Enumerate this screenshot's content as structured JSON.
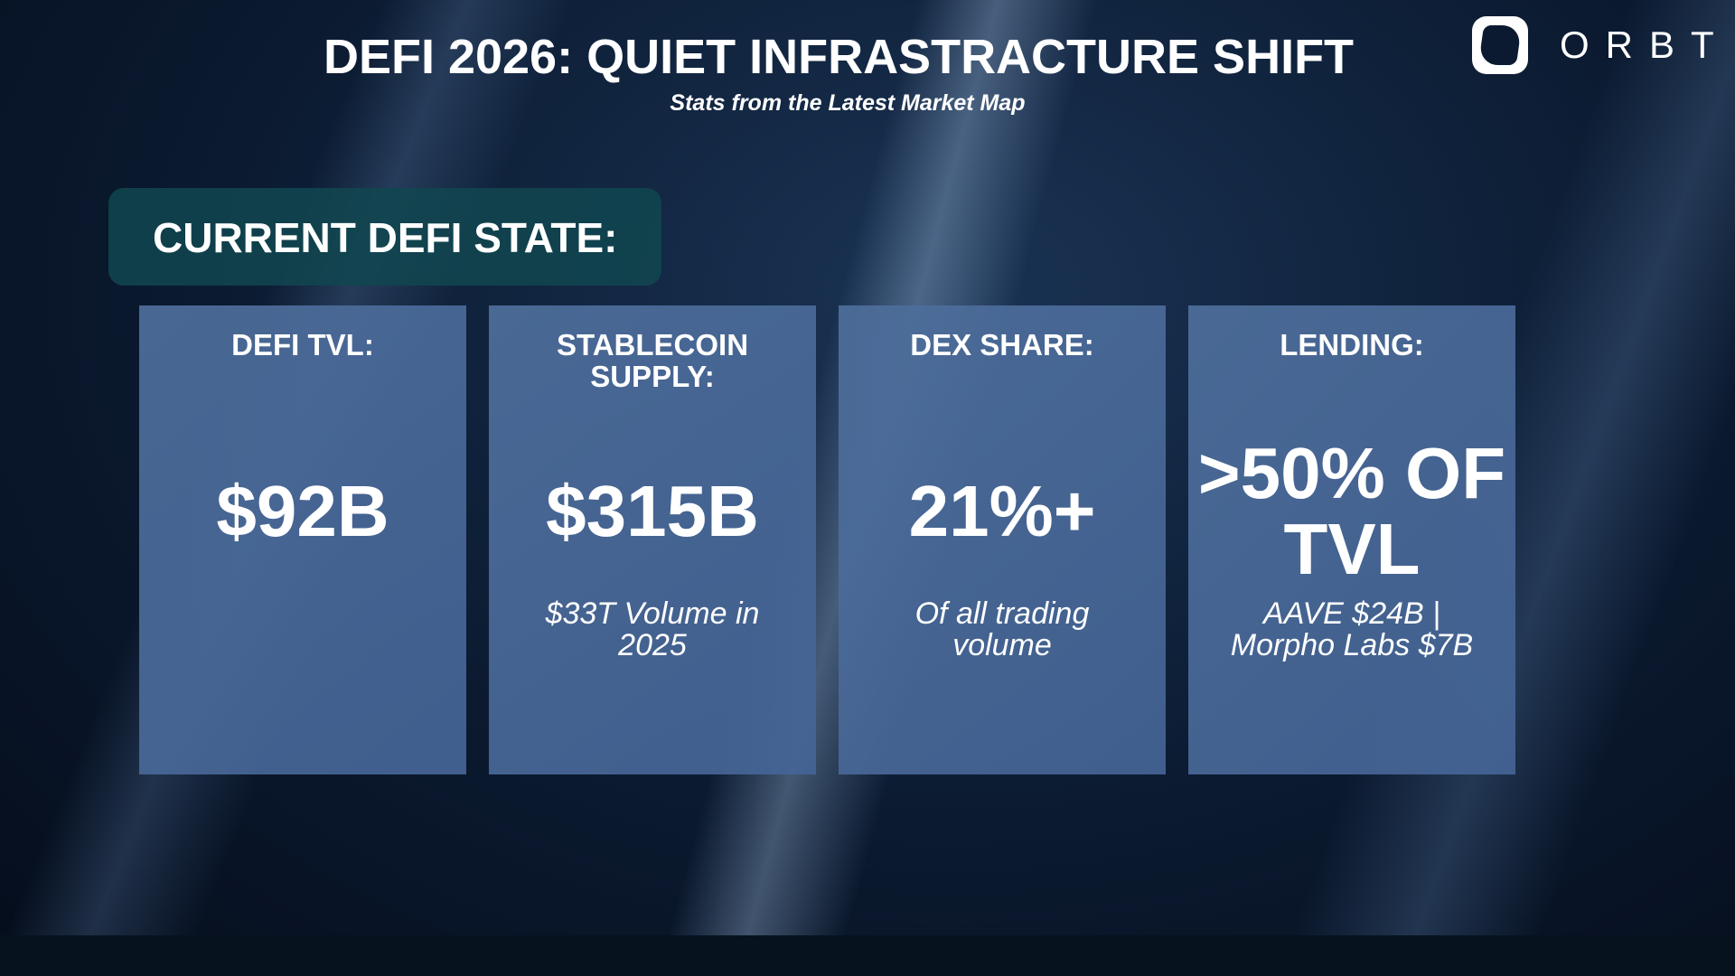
{
  "header": {
    "title": "DEFI 2026: QUIET INFRASTRACTURE SHIFT",
    "subtitle": "Stats from the Latest Market Map"
  },
  "logo": {
    "text": "ORBT"
  },
  "section": {
    "label": "CURRENT DEFI STATE:"
  },
  "cards": [
    {
      "title": "DEFI TVL:",
      "value": "$92B"
    },
    {
      "title": "STABLECOIN SUPPLY:",
      "value": "$315B",
      "note": "$33T Volume in 2025"
    },
    {
      "title": "DEX SHARE:",
      "value": "21%+",
      "note": "Of all trading volume"
    },
    {
      "title": "LENDING:",
      "value": ">50% OF TVL",
      "note": "AAVE $24B | Morpho Labs $7B"
    }
  ]
}
